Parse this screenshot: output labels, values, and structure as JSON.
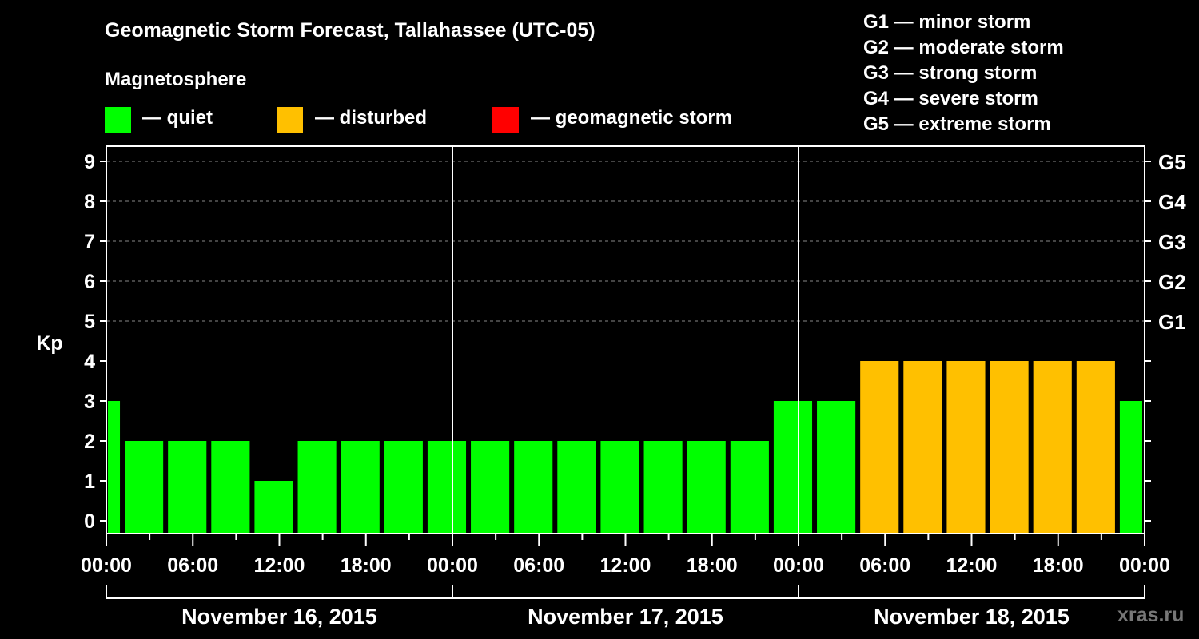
{
  "chart_data": {
    "type": "bar",
    "title": "Geomagnetic Storm Forecast, Tallahassee (UTC-05)",
    "legend_title": "Magnetosphere",
    "legend": [
      {
        "label": "— quiet",
        "color": "#00ff00"
      },
      {
        "label": "— disturbed",
        "color": "#ffc000"
      },
      {
        "label": "— geomagnetic storm",
        "color": "#ff0000"
      }
    ],
    "g_scale": [
      "G1 — minor storm",
      "G2 — moderate storm",
      "G3 — strong storm",
      "G4 — severe storm",
      "G5 — extreme storm"
    ],
    "ylabel": "Kp",
    "ylim": [
      0,
      9
    ],
    "yticks": [
      "0",
      "1",
      "2",
      "3",
      "4",
      "5",
      "6",
      "7",
      "8",
      "9"
    ],
    "right_ticks": [
      {
        "kp": 5,
        "label": "G1"
      },
      {
        "kp": 6,
        "label": "G2"
      },
      {
        "kp": 7,
        "label": "G3"
      },
      {
        "kp": 8,
        "label": "G4"
      },
      {
        "kp": 9,
        "label": "G5"
      }
    ],
    "x_range_hours": [
      0,
      72
    ],
    "xticks": [
      "00:00",
      "06:00",
      "12:00",
      "18:00",
      "00:00",
      "06:00",
      "12:00",
      "18:00",
      "00:00",
      "06:00",
      "12:00",
      "18:00",
      "00:00"
    ],
    "dates": [
      "November 16, 2015",
      "November 17, 2015",
      "November 18, 2015"
    ],
    "bars": [
      {
        "start_h": -2,
        "end_h": 1,
        "kp": 3,
        "level": "quiet"
      },
      {
        "start_h": 1,
        "end_h": 4,
        "kp": 2,
        "level": "quiet"
      },
      {
        "start_h": 4,
        "end_h": 7,
        "kp": 2,
        "level": "quiet"
      },
      {
        "start_h": 7,
        "end_h": 10,
        "kp": 2,
        "level": "quiet"
      },
      {
        "start_h": 10,
        "end_h": 13,
        "kp": 1,
        "level": "quiet"
      },
      {
        "start_h": 13,
        "end_h": 16,
        "kp": 2,
        "level": "quiet"
      },
      {
        "start_h": 16,
        "end_h": 19,
        "kp": 2,
        "level": "quiet"
      },
      {
        "start_h": 19,
        "end_h": 22,
        "kp": 2,
        "level": "quiet"
      },
      {
        "start_h": 22,
        "end_h": 25,
        "kp": 2,
        "level": "quiet"
      },
      {
        "start_h": 25,
        "end_h": 28,
        "kp": 2,
        "level": "quiet"
      },
      {
        "start_h": 28,
        "end_h": 31,
        "kp": 2,
        "level": "quiet"
      },
      {
        "start_h": 31,
        "end_h": 34,
        "kp": 2,
        "level": "quiet"
      },
      {
        "start_h": 34,
        "end_h": 37,
        "kp": 2,
        "level": "quiet"
      },
      {
        "start_h": 37,
        "end_h": 40,
        "kp": 2,
        "level": "quiet"
      },
      {
        "start_h": 40,
        "end_h": 43,
        "kp": 2,
        "level": "quiet"
      },
      {
        "start_h": 43,
        "end_h": 46,
        "kp": 2,
        "level": "quiet"
      },
      {
        "start_h": 46,
        "end_h": 49,
        "kp": 3,
        "level": "quiet"
      },
      {
        "start_h": 49,
        "end_h": 52,
        "kp": 3,
        "level": "quiet"
      },
      {
        "start_h": 52,
        "end_h": 55,
        "kp": 4,
        "level": "disturbed"
      },
      {
        "start_h": 55,
        "end_h": 58,
        "kp": 4,
        "level": "disturbed"
      },
      {
        "start_h": 58,
        "end_h": 61,
        "kp": 4,
        "level": "disturbed"
      },
      {
        "start_h": 61,
        "end_h": 64,
        "kp": 4,
        "level": "disturbed"
      },
      {
        "start_h": 64,
        "end_h": 67,
        "kp": 4,
        "level": "disturbed"
      },
      {
        "start_h": 67,
        "end_h": 70,
        "kp": 4,
        "level": "disturbed"
      },
      {
        "start_h": 70,
        "end_h": 72,
        "kp": 3,
        "level": "quiet"
      }
    ],
    "colors": {
      "quiet": "#00ff00",
      "disturbed": "#ffc000",
      "storm": "#ff0000"
    },
    "grid": "dashed horizontal at Kp 5-9"
  },
  "watermark": "xras.ru"
}
